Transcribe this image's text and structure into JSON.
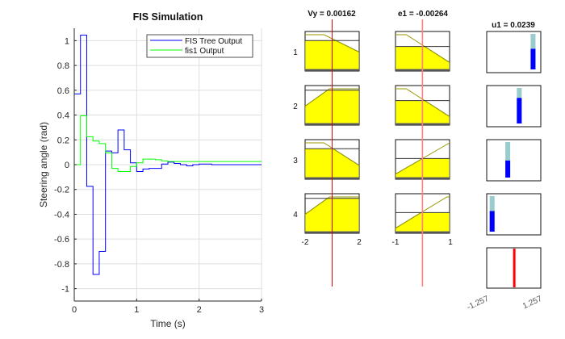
{
  "chart_data": [
    {
      "type": "line",
      "step": true,
      "title": "FIS Simulation",
      "xlabel": "Time (s)",
      "ylabel": "Steering angle (rad)",
      "xlim": [
        0,
        3
      ],
      "ylim": [
        -1.1,
        1.1
      ],
      "xticks": [
        "0",
        "1",
        "2",
        "3"
      ],
      "yticks": [
        "-1",
        "-0.8",
        "-0.6",
        "-0.4",
        "-0.2",
        "0",
        "0.2",
        "0.4",
        "0.6",
        "0.8",
        "1"
      ],
      "grid": true,
      "legend_position": "top-right",
      "series": [
        {
          "name": "FIS Tree Output",
          "color": "#0000ff",
          "x": [
            0,
            0.1,
            0.2,
            0.3,
            0.4,
            0.5,
            0.6,
            0.7,
            0.8,
            0.9,
            1.0,
            1.1,
            1.2,
            1.4,
            1.5,
            1.6,
            1.7,
            1.8,
            1.9,
            2.0,
            2.2,
            3.0
          ],
          "y": [
            0.57,
            1.045,
            -0.175,
            -0.885,
            -0.7,
            0.11,
            0.095,
            0.28,
            0.12,
            0.015,
            -0.055,
            -0.035,
            -0.03,
            0.005,
            0.02,
            0.01,
            0,
            -0.01,
            0,
            0.005,
            0,
            0
          ]
        },
        {
          "name": "fis1 Output",
          "color": "#00ff00",
          "x": [
            0,
            0.1,
            0.2,
            0.3,
            0.4,
            0.5,
            0.6,
            0.7,
            0.9,
            1.0,
            1.1,
            1.3,
            1.4,
            1.5,
            3.0
          ],
          "y": [
            0,
            0.395,
            0.225,
            0.19,
            0.17,
            0.095,
            -0.03,
            -0.055,
            -0.015,
            0.015,
            0.045,
            0.04,
            0.03,
            0.025,
            0.025
          ]
        }
      ]
    },
    {
      "type": "rule-viewer",
      "inputs": [
        {
          "label": "Vy = 0.00162",
          "range": [
            -2,
            2
          ],
          "range_labels": [
            "-2",
            "2"
          ],
          "value": 0.00162
        },
        {
          "label": "e1 = -0.00264",
          "range": [
            -1,
            1
          ],
          "range_labels": [
            "-1",
            "1"
          ],
          "value": -0.00264
        }
      ],
      "output": {
        "label": "u1 = 0.0239",
        "range": [
          -1.257,
          1.257
        ],
        "range_labels": [
          "-1.257",
          "1.257"
        ],
        "value": 0.0239
      },
      "rule_labels": [
        "1",
        "2",
        "3",
        "4"
      ],
      "colors": {
        "membership_fill": "#ffff00",
        "output_fill": "#0000ff",
        "output_bar_bg": "#99cccc",
        "value_line": "#ff0000"
      }
    }
  ]
}
